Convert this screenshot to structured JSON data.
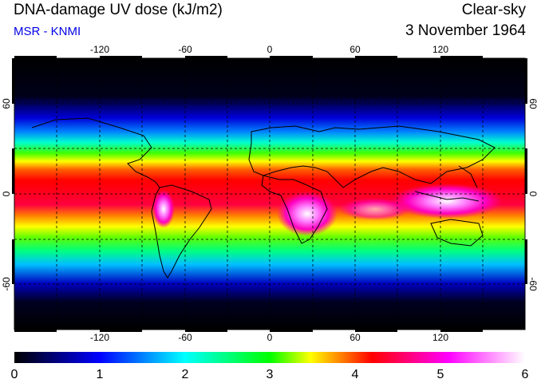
{
  "header": {
    "title": "DNA-damage UV dose (kJ/m2)",
    "subtitle": "MSR - KNMI",
    "sky_condition": "Clear-sky",
    "date": "3 November 1964"
  },
  "map": {
    "lon_ticks": [
      "-120",
      "-60",
      "0",
      "60",
      "120"
    ],
    "lat_ticks_left": [
      "60",
      "0",
      "-60"
    ],
    "lat_ticks_right": [
      "60",
      "0",
      "-60"
    ],
    "lon_range": [
      -180,
      180
    ],
    "lat_range": [
      -90,
      90
    ],
    "grid_interval_deg": 30
  },
  "colorbar": {
    "labels": [
      "0",
      "1",
      "2",
      "3",
      "4",
      "5",
      "6"
    ],
    "range": [
      0,
      6
    ],
    "colors": [
      "#000000",
      "#0000ff",
      "#00ffff",
      "#00ff00",
      "#ffff00",
      "#ff0000",
      "#ff00ff",
      "#ffffff"
    ]
  },
  "colors": {
    "subtitle": "#0000e6"
  }
}
